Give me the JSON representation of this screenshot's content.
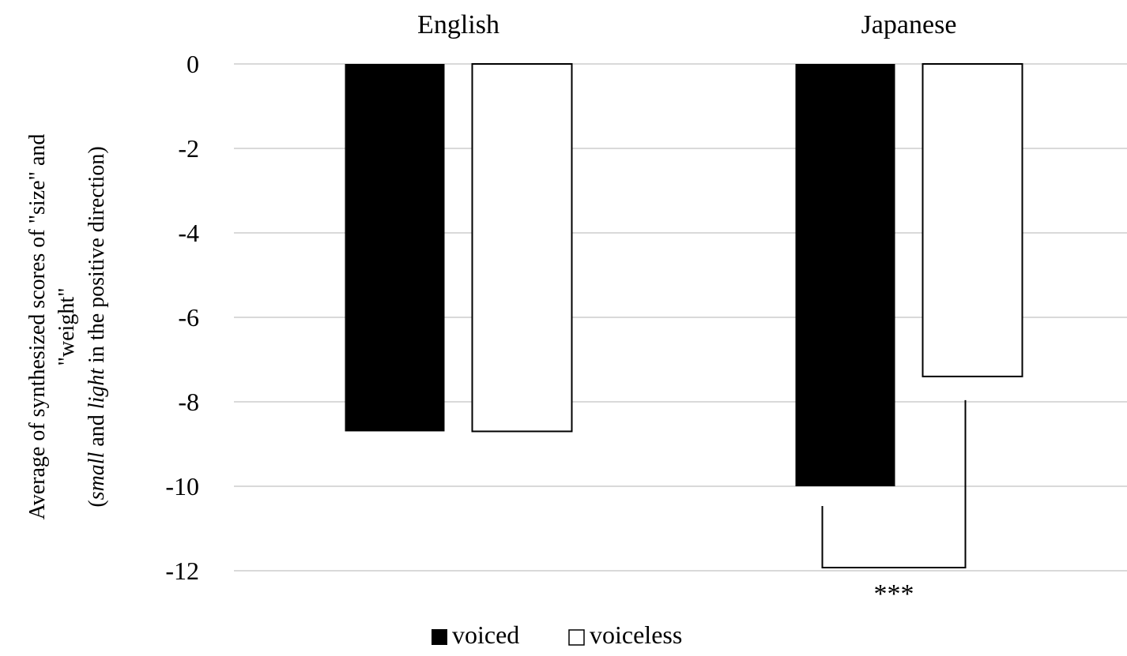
{
  "chart_data": {
    "type": "bar",
    "categories": [
      "English",
      "Japanese"
    ],
    "series": [
      {
        "name": "voiced",
        "values": [
          -8.7,
          -10.0
        ],
        "fill": "#000000"
      },
      {
        "name": "voiceless",
        "values": [
          -8.7,
          -7.4
        ],
        "fill": "#ffffff"
      }
    ],
    "ylabel_lines": [
      "Average of synthesized scores of  \"size\" and",
      "\"weight\"",
      "(small and light in the positive direction)"
    ],
    "ylabel_line3_parts": {
      "open": "(",
      "small": "small",
      "and": " and ",
      "light": "light",
      "rest": " in the positive direction)"
    },
    "ylim": [
      -12,
      0
    ],
    "yticks": [
      0,
      -2,
      -4,
      -6,
      -8,
      -10,
      -12
    ],
    "grid": true,
    "legend_position": "bottom-center",
    "annotations": [
      {
        "text": "***",
        "category": "Japanese",
        "between": [
          "voiced",
          "voiceless"
        ]
      }
    ],
    "colors": {
      "grid": "#d9d9d9",
      "axis_text": "#000000",
      "bar_outline": "#000000"
    }
  }
}
